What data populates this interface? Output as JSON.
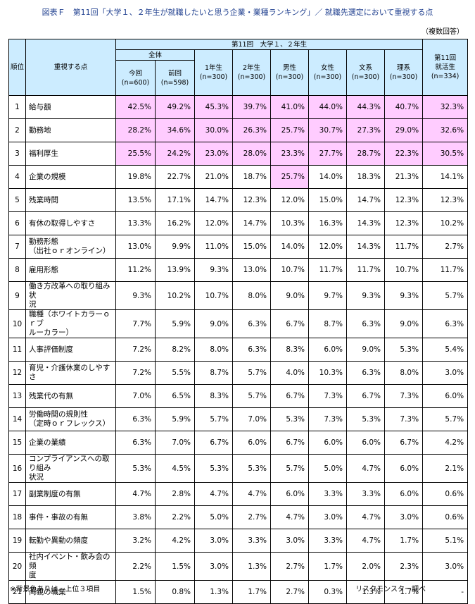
{
  "title": "図表Ｆ　第11回「大学１、２年生が就職したいと思う企業・業種ランキング」／ 就職先選定において重視する点",
  "note_top": "（複数回答）",
  "header": {
    "rank": "順位",
    "item": "重視する点",
    "group": "第11回　大学１、２年生",
    "overall": "全体",
    "now_label": "今回",
    "now_n": "(n=600)",
    "prev_label": "前回",
    "prev_n": "(n=598)",
    "y1_label": "1年生",
    "y1_n": "(n=300)",
    "y2_label": "2年生",
    "y2_n": "(n=300)",
    "male_label": "男性",
    "male_n": "(n=300)",
    "female_label": "女性",
    "female_n": "(n=300)",
    "bunkei_label": "文系",
    "bunkei_n": "(n=300)",
    "rikei_label": "理系",
    "rikei_n": "(n=300)",
    "shukatsu_label1": "第11回",
    "shukatsu_label2": "就活生",
    "shukatsu_n": "(n=334)"
  },
  "highlight_color": "#ffccff",
  "header_color": "#ccecff",
  "rows": [
    {
      "rank": "1",
      "item": "給与額",
      "values": [
        "42.5%",
        "49.2%",
        "45.3%",
        "39.7%",
        "41.0%",
        "44.0%",
        "44.3%",
        "40.7%",
        "32.3%"
      ],
      "hl": [
        0,
        1,
        2,
        3,
        4,
        5,
        6,
        7,
        8
      ]
    },
    {
      "rank": "2",
      "item": "勤務地",
      "values": [
        "28.2%",
        "34.6%",
        "30.0%",
        "26.3%",
        "25.7%",
        "30.7%",
        "27.3%",
        "29.0%",
        "32.6%"
      ],
      "hl": [
        0,
        1,
        2,
        3,
        4,
        5,
        6,
        7,
        8
      ]
    },
    {
      "rank": "3",
      "item": "福利厚生",
      "values": [
        "25.5%",
        "24.2%",
        "23.0%",
        "28.0%",
        "23.3%",
        "27.7%",
        "28.7%",
        "22.3%",
        "30.5%"
      ],
      "hl": [
        0,
        1,
        2,
        3,
        4,
        5,
        6,
        7,
        8
      ]
    },
    {
      "rank": "4",
      "item": "企業の規模",
      "values": [
        "19.8%",
        "22.7%",
        "21.0%",
        "18.7%",
        "25.7%",
        "14.0%",
        "18.3%",
        "21.3%",
        "14.1%"
      ],
      "hl": [
        4
      ]
    },
    {
      "rank": "5",
      "item": "残業時間",
      "values": [
        "13.5%",
        "17.1%",
        "14.7%",
        "12.3%",
        "12.0%",
        "15.0%",
        "14.7%",
        "12.3%",
        "12.3%"
      ],
      "hl": []
    },
    {
      "rank": "6",
      "item": "有休の取得しやすさ",
      "values": [
        "13.3%",
        "16.2%",
        "12.0%",
        "14.7%",
        "10.3%",
        "16.3%",
        "14.3%",
        "12.3%",
        "10.2%"
      ],
      "hl": []
    },
    {
      "rank": "7",
      "item": "勤務形態\n（出社ｏｒオンライン）",
      "values": [
        "13.0%",
        "9.9%",
        "11.0%",
        "15.0%",
        "14.0%",
        "12.0%",
        "14.3%",
        "11.7%",
        "2.7%"
      ],
      "hl": []
    },
    {
      "rank": "8",
      "item": "雇用形態",
      "values": [
        "11.2%",
        "13.9%",
        "9.3%",
        "13.0%",
        "10.7%",
        "11.7%",
        "11.7%",
        "10.7%",
        "11.7%"
      ],
      "hl": []
    },
    {
      "rank": "9",
      "item": "働き方改革への取り組み状\n況",
      "values": [
        "9.3%",
        "10.2%",
        "10.7%",
        "8.0%",
        "9.0%",
        "9.7%",
        "9.3%",
        "9.3%",
        "5.7%"
      ],
      "hl": []
    },
    {
      "rank": "10",
      "item": "職種（ホワイトカラーｏｒブ\nルーカラー）",
      "values": [
        "7.7%",
        "5.9%",
        "9.0%",
        "6.3%",
        "6.7%",
        "8.7%",
        "6.3%",
        "9.0%",
        "6.3%"
      ],
      "hl": []
    },
    {
      "rank": "11",
      "item": "人事評価制度",
      "values": [
        "7.2%",
        "8.2%",
        "8.0%",
        "6.3%",
        "8.3%",
        "6.0%",
        "9.0%",
        "5.3%",
        "5.4%"
      ],
      "hl": []
    },
    {
      "rank": "12",
      "item": "育児・介護休業のしやすさ",
      "values": [
        "7.2%",
        "5.5%",
        "8.7%",
        "5.7%",
        "4.0%",
        "10.3%",
        "6.3%",
        "8.0%",
        "3.0%"
      ],
      "hl": []
    },
    {
      "rank": "13",
      "item": "残業代の有無",
      "values": [
        "7.0%",
        "6.5%",
        "8.3%",
        "5.7%",
        "6.7%",
        "7.3%",
        "6.7%",
        "7.3%",
        "6.0%"
      ],
      "hl": []
    },
    {
      "rank": "14",
      "item": "労働時間の規則性\n（定時ｏｒフレックス）",
      "values": [
        "6.3%",
        "5.9%",
        "5.7%",
        "7.0%",
        "5.3%",
        "7.3%",
        "5.3%",
        "7.3%",
        "5.7%"
      ],
      "hl": []
    },
    {
      "rank": "15",
      "item": "企業の業績",
      "values": [
        "6.3%",
        "7.0%",
        "6.7%",
        "6.0%",
        "6.7%",
        "6.0%",
        "6.0%",
        "6.7%",
        "4.2%"
      ],
      "hl": []
    },
    {
      "rank": "16",
      "item": "コンプライアンスへの取り組み\n状況",
      "values": [
        "5.3%",
        "4.5%",
        "5.3%",
        "5.3%",
        "5.7%",
        "5.0%",
        "4.7%",
        "6.0%",
        "2.1%"
      ],
      "hl": []
    },
    {
      "rank": "17",
      "item": "副業制度の有無",
      "values": [
        "4.7%",
        "2.8%",
        "4.7%",
        "4.7%",
        "6.0%",
        "3.3%",
        "3.3%",
        "6.0%",
        "0.6%"
      ],
      "hl": []
    },
    {
      "rank": "18",
      "item": "事件・事故の有無",
      "values": [
        "3.8%",
        "2.2%",
        "5.0%",
        "2.7%",
        "4.7%",
        "3.0%",
        "4.7%",
        "3.0%",
        "0.6%"
      ],
      "hl": []
    },
    {
      "rank": "19",
      "item": "転勤や異動の頻度",
      "values": [
        "3.2%",
        "4.2%",
        "3.0%",
        "3.3%",
        "3.0%",
        "3.3%",
        "4.7%",
        "1.7%",
        "5.1%"
      ],
      "hl": []
    },
    {
      "rank": "20",
      "item": "社内イベント・飲み会の頻\n度",
      "values": [
        "2.2%",
        "1.5%",
        "3.0%",
        "1.3%",
        "2.7%",
        "1.7%",
        "2.0%",
        "2.3%",
        "3.0%"
      ],
      "hl": []
    },
    {
      "rank": "21",
      "item": "両親の職業",
      "values": [
        "1.5%",
        "0.8%",
        "1.3%",
        "1.7%",
        "2.7%",
        "0.3%",
        "1.3%",
        "1.7%",
        "-"
      ],
      "hl": []
    }
  ],
  "footer_note": "※背景色ありは、上位３項目",
  "source": "リスクモンスター調べ"
}
